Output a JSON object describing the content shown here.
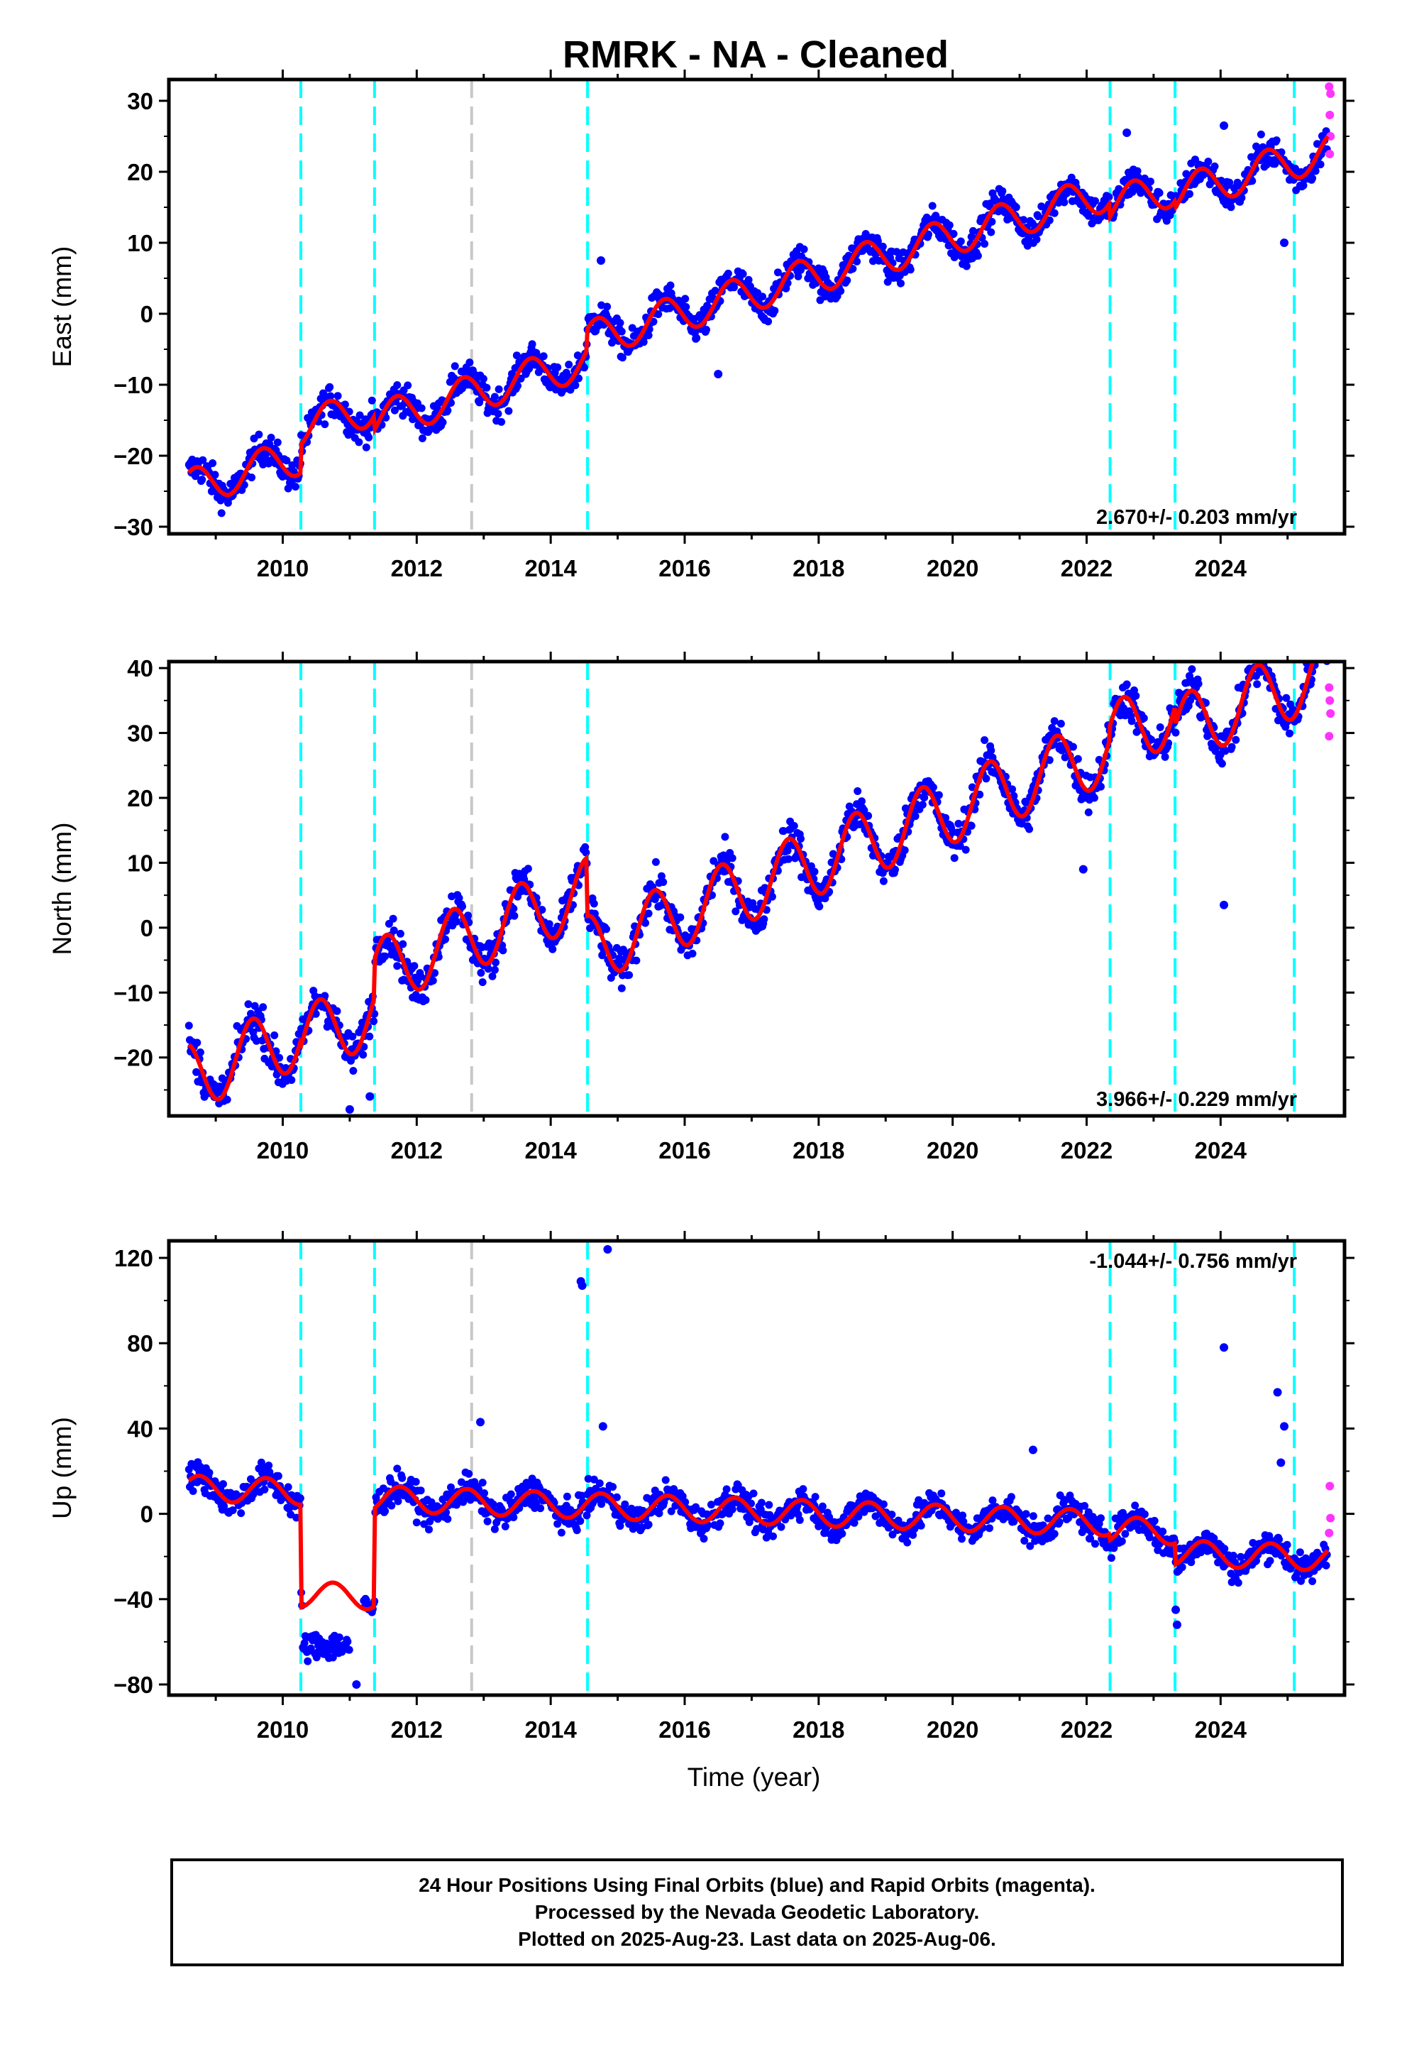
{
  "title": "RMRK  - NA - Cleaned",
  "colors": {
    "final": "#0000ff",
    "rapid": "#ff33ff",
    "model": "#ff0000",
    "equipment_change": "#00ffff",
    "earthquake": "#c8c8c8"
  },
  "footer": {
    "line1": "24 Hour Positions Using Final Orbits (blue) and Rapid Orbits (magenta).",
    "line2": "Processed by the Nevada Geodetic Laboratory.",
    "line3": "Plotted on 2025-Aug-23. Last data on 2025-Aug-06."
  },
  "chart_data": [
    {
      "type": "scatter",
      "component": "east",
      "ylabel": "East (mm)",
      "xlabel": "",
      "xlim": [
        2008.3,
        2025.85
      ],
      "ylim": [
        -31,
        33
      ],
      "yticks": [
        -30,
        -20,
        -10,
        0,
        10,
        20,
        30
      ],
      "xticks": [
        2010,
        2012,
        2014,
        2016,
        2018,
        2020,
        2022,
        2024
      ],
      "rate_label": "2.670+/- 0.203 mm/yr",
      "rate_position": "bottom-right",
      "data_range": [
        2008.6,
        2025.6
      ],
      "trend": {
        "rate": 2.67,
        "offset_at_2008_6": -24.5
      },
      "seasonal": {
        "amplitude": 2.6,
        "phase": 0.45
      },
      "steps": [
        {
          "t": 2010.27,
          "dy": 4
        },
        {
          "t": 2011.37,
          "dy": -2
        },
        {
          "t": 2014.55,
          "dy": 3
        },
        {
          "t": 2022.35,
          "dy": -2
        },
        {
          "t": 2023.32,
          "dy": -1
        }
      ],
      "noise_mm": 1.6,
      "outliers": [
        {
          "x": 2014.75,
          "y": 7.5
        },
        {
          "x": 2022.6,
          "y": 25.5
        },
        {
          "x": 2024.05,
          "y": 26.5
        },
        {
          "x": 2024.95,
          "y": 10
        },
        {
          "x": 2016.5,
          "y": -8.5
        }
      ],
      "rapid": [
        {
          "x": 2025.62,
          "y": 32
        },
        {
          "x": 2025.64,
          "y": 31
        },
        {
          "x": 2025.63,
          "y": 28
        },
        {
          "x": 2025.64,
          "y": 25
        },
        {
          "x": 2025.63,
          "y": 22.5
        }
      ],
      "vlines": {
        "equipment_change": [
          2010.27,
          2011.37,
          2014.55,
          2022.35,
          2023.32,
          2025.1
        ],
        "earthquake": [
          2012.82
        ]
      }
    },
    {
      "type": "scatter",
      "component": "north",
      "ylabel": "North (mm)",
      "xlabel": "",
      "xlim": [
        2008.3,
        2025.85
      ],
      "ylim": [
        -29,
        41
      ],
      "yticks": [
        -20,
        -10,
        0,
        10,
        20,
        30,
        40
      ],
      "xticks": [
        2010,
        2012,
        2014,
        2016,
        2018,
        2020,
        2022,
        2024
      ],
      "rate_label": "3.966+/- 0.229 mm/yr",
      "rate_position": "bottom-right",
      "data_range": [
        2008.6,
        2025.6
      ],
      "trend": {
        "rate": 3.966,
        "offset_at_2008_6": -23
      },
      "seasonal": {
        "amplitude": 5.2,
        "phase": 0.3
      },
      "steps": [
        {
          "t": 2010.27,
          "dy": -1
        },
        {
          "t": 2011.37,
          "dy": 6
        },
        {
          "t": 2014.55,
          "dy": -9
        },
        {
          "t": 2022.35,
          "dy": 2
        },
        {
          "t": 2023.32,
          "dy": -3
        }
      ],
      "noise_mm": 2.2,
      "outliers": [
        {
          "x": 2024.05,
          "y": 3.5
        },
        {
          "x": 2021.95,
          "y": 9
        },
        {
          "x": 2011.0,
          "y": -28
        },
        {
          "x": 2011.3,
          "y": -26
        }
      ],
      "rapid": [
        {
          "x": 2025.62,
          "y": 37
        },
        {
          "x": 2025.63,
          "y": 35
        },
        {
          "x": 2025.64,
          "y": 33
        },
        {
          "x": 2025.62,
          "y": 29.5
        }
      ],
      "vlines": {
        "equipment_change": [
          2010.27,
          2011.37,
          2014.55,
          2022.35,
          2023.32,
          2025.1
        ],
        "earthquake": [
          2012.82
        ]
      }
    },
    {
      "type": "scatter",
      "component": "up",
      "ylabel": "Up (mm)",
      "xlabel": "Time (year)",
      "xlim": [
        2008.3,
        2025.85
      ],
      "ylim": [
        -85,
        128
      ],
      "yticks": [
        -80,
        -40,
        0,
        40,
        80,
        120
      ],
      "xticks": [
        2010,
        2012,
        2014,
        2016,
        2018,
        2020,
        2022,
        2024
      ],
      "rate_label": "-1.044+/- 0.756 mm/yr",
      "rate_position": "top-right",
      "data_range": [
        2008.6,
        2025.6
      ],
      "data_gap": [
        2011.0,
        2011.2
      ],
      "trend": {
        "rate": -1.044,
        "offset_at_2008_6": 12
      },
      "seasonal": {
        "amplitude": 6,
        "phase": 0.5
      },
      "steps": [
        {
          "t": 2010.27,
          "dy": -48
        },
        {
          "t": 2011.37,
          "dy": 46
        },
        {
          "t": 2022.35,
          "dy": -3
        },
        {
          "t": 2023.32,
          "dy": -10
        }
      ],
      "offset_segment_data": {
        "x0": 2010.3,
        "x1": 2011.1,
        "center": -62,
        "spread": 8
      },
      "noise_mm": 5,
      "outliers": [
        {
          "x": 2014.45,
          "y": 109
        },
        {
          "x": 2014.47,
          "y": 107
        },
        {
          "x": 2014.85,
          "y": 124
        },
        {
          "x": 2012.95,
          "y": 43
        },
        {
          "x": 2014.78,
          "y": 41
        },
        {
          "x": 2024.05,
          "y": 78
        },
        {
          "x": 2024.85,
          "y": 57
        },
        {
          "x": 2024.95,
          "y": 41
        },
        {
          "x": 2024.9,
          "y": 24
        },
        {
          "x": 2023.7,
          "y": -15
        },
        {
          "x": 2023.35,
          "y": -52
        },
        {
          "x": 2023.33,
          "y": -45
        },
        {
          "x": 2021.2,
          "y": 30
        },
        {
          "x": 2011.1,
          "y": -80
        }
      ],
      "rapid": [
        {
          "x": 2025.63,
          "y": 13
        },
        {
          "x": 2025.64,
          "y": -2
        },
        {
          "x": 2025.62,
          "y": -9
        }
      ],
      "vlines": {
        "equipment_change": [
          2010.27,
          2011.37,
          2014.55,
          2022.35,
          2023.32,
          2025.1
        ],
        "earthquake": [
          2012.82
        ]
      }
    }
  ]
}
